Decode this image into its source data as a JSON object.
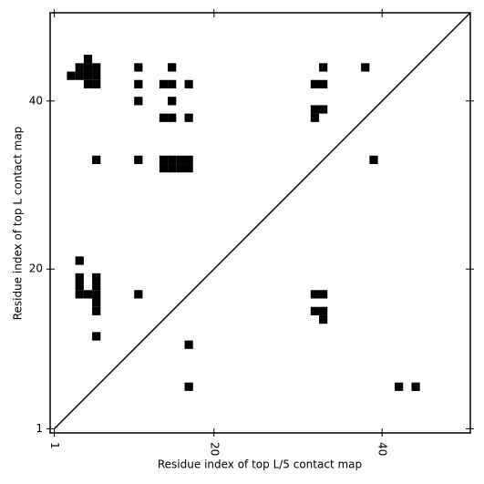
{
  "chart_data": {
    "type": "scatter",
    "marker": "square",
    "color": "#000000",
    "xlabel": "Residue index of top L/5 contact map",
    "ylabel": "Residue index of top L contact map",
    "xlim": [
      0.5,
      50.5
    ],
    "ylim": [
      0.5,
      50.5
    ],
    "xticks": [
      1,
      20,
      40
    ],
    "yticks": [
      1,
      20,
      40
    ],
    "diagonal": true,
    "x": [
      5,
      4,
      5,
      6,
      11,
      15,
      33,
      38,
      3,
      4,
      5,
      6,
      5,
      6,
      11,
      14,
      15,
      17,
      32,
      33,
      11,
      15,
      32,
      33,
      14,
      15,
      17,
      32,
      6,
      11,
      39,
      14,
      15,
      16,
      17,
      14,
      15,
      16,
      17,
      4,
      4,
      6,
      4,
      6,
      4,
      5,
      6,
      11,
      32,
      33,
      6,
      6,
      32,
      33,
      33,
      6,
      17,
      17,
      42,
      44
    ],
    "y": [
      45,
      44,
      44,
      44,
      44,
      44,
      44,
      44,
      43,
      43,
      43,
      43,
      42,
      42,
      42,
      42,
      42,
      42,
      42,
      42,
      40,
      40,
      39,
      39,
      38,
      38,
      38,
      38,
      33,
      33,
      33,
      33,
      33,
      33,
      33,
      32,
      32,
      32,
      32,
      21,
      19,
      19,
      18,
      18,
      17,
      17,
      17,
      17,
      17,
      17,
      16,
      15,
      15,
      15,
      14,
      12,
      11,
      6,
      6,
      6
    ]
  }
}
